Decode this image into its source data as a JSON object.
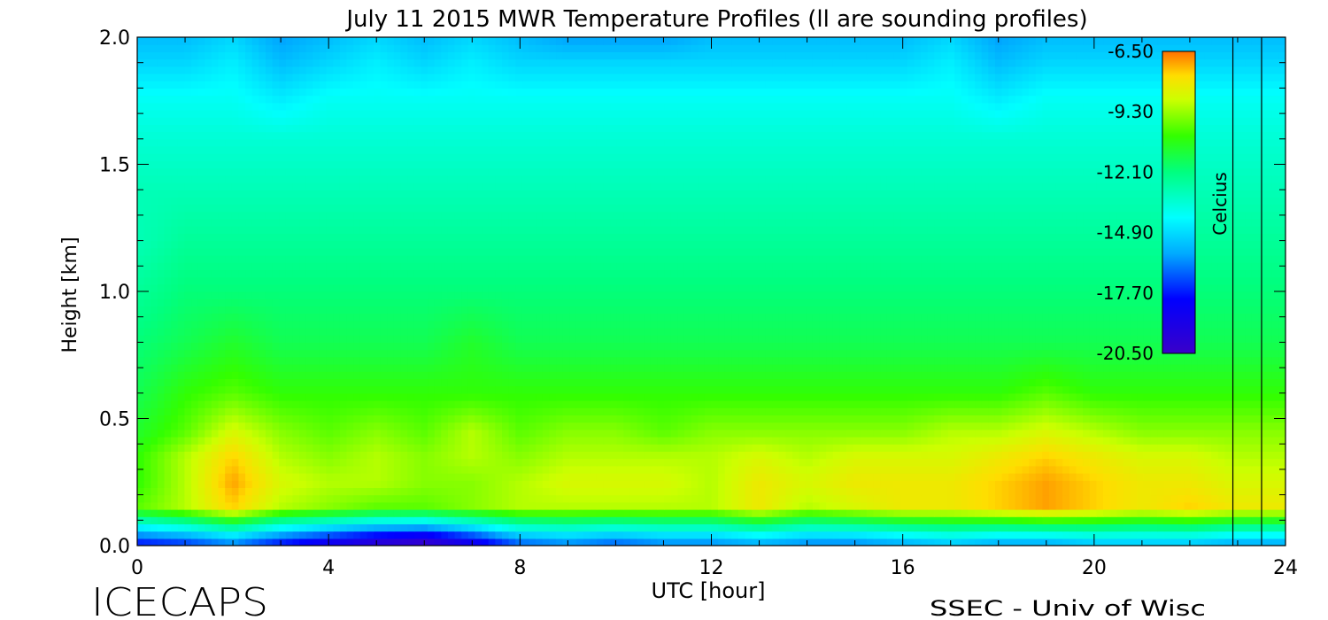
{
  "chart_data": {
    "type": "heatmap",
    "title": "July 11 2015 MWR Temperature Profiles (ll are sounding profiles)",
    "xlabel": "UTC [hour]",
    "ylabel": "Height [km]",
    "xlim": [
      0,
      24
    ],
    "ylim": [
      0.0,
      2.0
    ],
    "x_ticks": [
      0,
      4,
      8,
      12,
      16,
      20,
      24
    ],
    "x_tick_labels": [
      "0",
      "4",
      "8",
      "12",
      "16",
      "20",
      "24"
    ],
    "y_ticks": [
      0.0,
      0.5,
      1.0,
      1.5,
      2.0
    ],
    "y_tick_labels": [
      "0.0",
      "0.5",
      "1.0",
      "1.5",
      "2.0"
    ],
    "colorbar": {
      "label": "Celcius",
      "ticks": [
        -6.5,
        -9.3,
        -12.1,
        -14.9,
        -17.7,
        -20.5
      ],
      "tick_labels": [
        "-6.50",
        "-9.30",
        "-12.10",
        "-14.90",
        "-17.70",
        "-20.50"
      ],
      "range": [
        -20.5,
        -6.5
      ]
    },
    "sounding_lines_utc": [
      22.9,
      23.5
    ],
    "z_values_celsius": [
      [
        -17.5,
        -17,
        -16,
        -17.5,
        -18.5,
        -19.5,
        -20,
        -18.5,
        -16.5,
        -16,
        -16.5,
        -16,
        -16,
        -15.5,
        -16,
        -16,
        -15.5,
        -15,
        -15.5,
        -15.5,
        -15,
        -15,
        -15,
        -15.5,
        -15.5
      ],
      [
        -10,
        -9,
        -7.5,
        -9,
        -9.5,
        -10,
        -10,
        -9.5,
        -9,
        -9,
        -9,
        -9,
        -9,
        -8,
        -9,
        -8.5,
        -8,
        -8,
        -7.5,
        -7,
        -7.5,
        -8,
        -7.5,
        -8,
        -8
      ],
      [
        -10.5,
        -9,
        -7,
        -8.5,
        -9,
        -9,
        -9.5,
        -9.5,
        -9,
        -8.5,
        -8.5,
        -8.5,
        -9,
        -8,
        -8.5,
        -8,
        -8,
        -8,
        -7.5,
        -7,
        -7.5,
        -8,
        -8,
        -8.5,
        -8.5
      ],
      [
        -10.5,
        -9,
        -7.5,
        -9,
        -9.5,
        -9,
        -9.5,
        -9,
        -9.5,
        -9,
        -9,
        -9,
        -9,
        -8.5,
        -9,
        -8.5,
        -8.5,
        -8.5,
        -8,
        -7.5,
        -8,
        -8.5,
        -8.5,
        -9,
        -9
      ],
      [
        -11,
        -10,
        -8.5,
        -9.5,
        -10,
        -9.5,
        -10,
        -9,
        -10,
        -9.5,
        -9.5,
        -10,
        -9.5,
        -9.5,
        -9.5,
        -9.5,
        -9.5,
        -9,
        -9,
        -8.5,
        -9,
        -9.5,
        -9.5,
        -9.5,
        -9.5
      ],
      [
        -11.5,
        -10.5,
        -10,
        -10.5,
        -10.5,
        -10.5,
        -10.5,
        -10.5,
        -10.5,
        -10.5,
        -10.5,
        -10.5,
        -10.5,
        -10.5,
        -10.5,
        -10.5,
        -10.5,
        -10.5,
        -10.5,
        -10,
        -10.5,
        -10.5,
        -10.5,
        -10.5,
        -10.5
      ],
      [
        -12,
        -11.5,
        -11,
        -11.5,
        -11.5,
        -11.5,
        -11.5,
        -11,
        -11.5,
        -11.5,
        -11.5,
        -11.5,
        -11.5,
        -11.5,
        -11.5,
        -11.5,
        -11.5,
        -11.5,
        -11.5,
        -11.5,
        -11.5,
        -11.5,
        -11.5,
        -11.5,
        -11.5
      ],
      [
        -12.5,
        -12,
        -12,
        -12,
        -12,
        -12,
        -12,
        -12,
        -12,
        -12,
        -12,
        -12,
        -12,
        -12,
        -12,
        -12,
        -12,
        -12,
        -12,
        -12,
        -12,
        -12,
        -12,
        -12,
        -12
      ],
      [
        -13,
        -12.5,
        -12.5,
        -12.5,
        -12.5,
        -12.5,
        -12.5,
        -12.5,
        -12.5,
        -12.5,
        -12.5,
        -12.5,
        -12.5,
        -12.5,
        -12.5,
        -12.5,
        -12.5,
        -12.5,
        -12.5,
        -12.5,
        -12.5,
        -12.5,
        -12.5,
        -12.5,
        -12.5
      ],
      [
        -13,
        -13,
        -13,
        -13,
        -13,
        -13,
        -13,
        -13,
        -13,
        -13,
        -13,
        -13,
        -13,
        -13,
        -13,
        -13,
        -13,
        -13,
        -13,
        -13,
        -13,
        -13,
        -13,
        -13,
        -13
      ],
      [
        -13.5,
        -13.5,
        -13.5,
        -13.5,
        -13.5,
        -13.5,
        -13.5,
        -13.5,
        -13.5,
        -13.5,
        -13.5,
        -13.5,
        -13.5,
        -13.5,
        -13.5,
        -13.5,
        -13.5,
        -13.5,
        -13.5,
        -13.5,
        -13.5,
        -13.5,
        -13.5,
        -13.5,
        -13.5
      ],
      [
        -14,
        -14,
        -14,
        -14.5,
        -14,
        -14,
        -14,
        -14,
        -14,
        -14,
        -14,
        -14,
        -14,
        -14,
        -14,
        -14,
        -14,
        -14,
        -14.5,
        -14,
        -14,
        -14,
        -14,
        -14,
        -14
      ],
      [
        -15,
        -15,
        -14.5,
        -15.5,
        -15,
        -14.5,
        -15,
        -14.5,
        -15,
        -15,
        -15,
        -15,
        -15,
        -15,
        -15,
        -15,
        -15,
        -14.5,
        -15.5,
        -15,
        -15,
        -15,
        -15,
        -15,
        -15
      ],
      [
        -15.5,
        -15.5,
        -15,
        -16,
        -15.5,
        -15,
        -15.5,
        -15,
        -15.5,
        -16,
        -16,
        -16,
        -15.5,
        -15.5,
        -15.5,
        -15.5,
        -15.5,
        -15,
        -16,
        -15.5,
        -15.5,
        -15.5,
        -15.5,
        -15.5,
        -15.5
      ]
    ],
    "z_row_heights_km": [
      0.02,
      0.15,
      0.25,
      0.35,
      0.45,
      0.6,
      0.8,
      1.0,
      1.2,
      1.4,
      1.6,
      1.75,
      1.9,
      2.0
    ],
    "z_col_hours": [
      0,
      1,
      2,
      3,
      4,
      5,
      6,
      7,
      8,
      9,
      10,
      11,
      12,
      13,
      14,
      15,
      16,
      17,
      18,
      19,
      20,
      21,
      22,
      23,
      24
    ]
  },
  "footer": {
    "left_logo": "ICECAPS",
    "right_credit": "SSEC - Univ of Wisc"
  }
}
